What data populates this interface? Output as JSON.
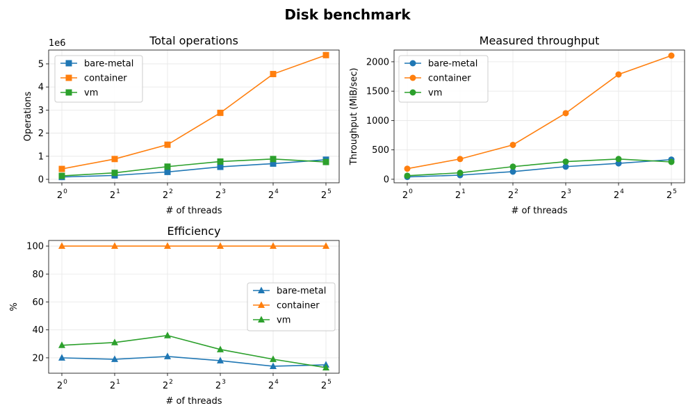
{
  "figure": {
    "title": "Disk benchmark"
  },
  "colors": {
    "bare-metal": "#1f77b4",
    "container": "#ff7f0e",
    "vm": "#2ca02c",
    "grid": "#e6e6e6"
  },
  "chart_data": [
    {
      "type": "line",
      "title": "Total operations",
      "xlabel": "# of threads",
      "ylabel": "Operations",
      "offset_label": "1e6",
      "x": [
        1,
        2,
        4,
        8,
        16,
        32
      ],
      "x_tick_base": "2",
      "x_tick_exponents": [
        "0",
        "1",
        "2",
        "3",
        "4",
        "5"
      ],
      "x_scale": "log2",
      "y_ticks": [
        0,
        1,
        2,
        3,
        4,
        5
      ],
      "y_tick_labels": [
        "0",
        "1",
        "2",
        "3",
        "4",
        "5"
      ],
      "ylim": [
        -0.15,
        5.6
      ],
      "marker": "square",
      "grid": true,
      "legend_position": "upper-left",
      "series": [
        {
          "name": "bare-metal",
          "values": [
            0.1,
            0.17,
            0.32,
            0.54,
            0.68,
            0.85
          ]
        },
        {
          "name": "container",
          "values": [
            0.45,
            0.88,
            1.5,
            2.88,
            4.56,
            5.38
          ]
        },
        {
          "name": "vm",
          "values": [
            0.15,
            0.28,
            0.55,
            0.77,
            0.88,
            0.75
          ]
        }
      ]
    },
    {
      "type": "line",
      "title": "Measured throughput",
      "xlabel": "# of threads",
      "ylabel": "Throughput (MiB/sec)",
      "x": [
        1,
        2,
        4,
        8,
        16,
        32
      ],
      "x_tick_base": "2",
      "x_tick_exponents": [
        "0",
        "1",
        "2",
        "3",
        "4",
        "5"
      ],
      "x_scale": "log2",
      "y_ticks": [
        0,
        500,
        1000,
        1500,
        2000
      ],
      "y_tick_labels": [
        "0",
        "500",
        "1000",
        "1500",
        "2000"
      ],
      "ylim": [
        -60,
        2200
      ],
      "marker": "circle",
      "grid": true,
      "legend_position": "upper-left",
      "series": [
        {
          "name": "bare-metal",
          "values": [
            40,
            70,
            130,
            215,
            270,
            335
          ]
        },
        {
          "name": "container",
          "values": [
            180,
            345,
            585,
            1125,
            1785,
            2105
          ]
        },
        {
          "name": "vm",
          "values": [
            60,
            110,
            215,
            300,
            345,
            295
          ]
        }
      ]
    },
    {
      "type": "line",
      "title": "Efficiency",
      "xlabel": "# of threads",
      "ylabel": "%",
      "x": [
        1,
        2,
        4,
        8,
        16,
        32
      ],
      "x_tick_base": "2",
      "x_tick_exponents": [
        "0",
        "1",
        "2",
        "3",
        "4",
        "5"
      ],
      "x_scale": "log2",
      "y_ticks": [
        20,
        40,
        60,
        80,
        100
      ],
      "y_tick_labels": [
        "20",
        "40",
        "60",
        "80",
        "100"
      ],
      "ylim": [
        9,
        104
      ],
      "marker": "triangle",
      "grid": true,
      "legend_position": "center-right",
      "series": [
        {
          "name": "bare-metal",
          "values": [
            20,
            19,
            21,
            18,
            14,
            15
          ]
        },
        {
          "name": "container",
          "values": [
            100,
            100,
            100,
            100,
            100,
            100
          ]
        },
        {
          "name": "vm",
          "values": [
            29,
            31,
            36,
            26,
            19,
            13
          ]
        }
      ]
    }
  ]
}
